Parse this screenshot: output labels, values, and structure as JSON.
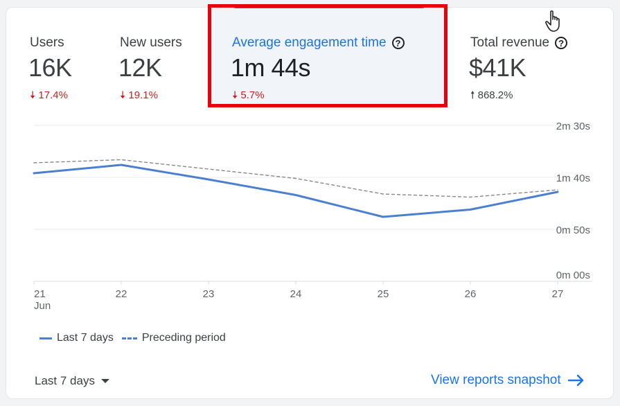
{
  "metrics": {
    "users": {
      "label": "Users",
      "value": "16K",
      "delta": "17.4%",
      "direction": "down"
    },
    "new_users": {
      "label": "New users",
      "value": "12K",
      "delta": "19.1%",
      "direction": "down"
    },
    "avg_engagement": {
      "label": "Average engagement time",
      "value": "1m 44s",
      "delta": "5.7%",
      "direction": "down",
      "selected": true
    },
    "total_revenue": {
      "label": "Total revenue",
      "value": "$41K",
      "delta": "868.2%",
      "direction": "up"
    }
  },
  "chart_data": {
    "type": "line",
    "categories": [
      "21",
      "22",
      "23",
      "24",
      "25",
      "26",
      "27"
    ],
    "x_sublabel": "Jun",
    "y_ticks": [
      "2m 30s",
      "1m 40s",
      "0m 50s",
      "0m 00s"
    ],
    "y_tick_seconds": [
      150,
      100,
      50,
      0
    ],
    "ylim": [
      0,
      150
    ],
    "series": [
      {
        "name": "Last 7 days",
        "style": "solid",
        "color": "#4a80cf",
        "values": [
          104,
          112,
          98,
          83,
          62,
          69,
          86
        ]
      },
      {
        "name": "Preceding period",
        "style": "dashed",
        "color": "#888888",
        "values": [
          114,
          117,
          108,
          99,
          84,
          81,
          88
        ]
      }
    ]
  },
  "legend": {
    "solid": "Last 7 days",
    "dashed": "Preceding period"
  },
  "footer": {
    "range_label": "Last 7 days",
    "snapshot_link": "View reports snapshot"
  },
  "colors": {
    "accent": "#1a73e8",
    "down": "#c5221f",
    "highlight": "#e8000b"
  },
  "icons": {
    "help": "question-circle-icon",
    "down": "arrow-down-icon",
    "up": "arrow-up-icon",
    "link": "arrow-right-icon",
    "cursor": "hand-pointer-icon"
  }
}
